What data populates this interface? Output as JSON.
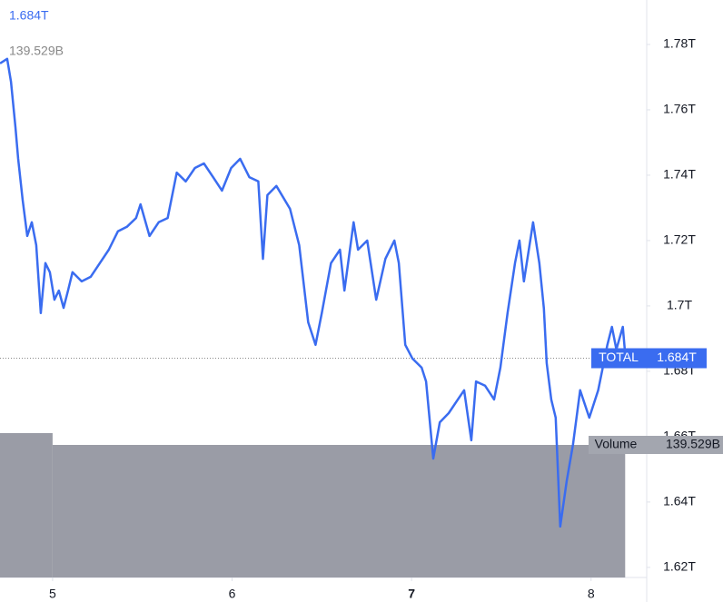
{
  "chart_data": {
    "type": "line",
    "series": [
      {
        "name": "TOTAL",
        "color": "#3a6cf0",
        "x": [
          4.707,
          4.747,
          4.768,
          4.793,
          4.808,
          4.833,
          4.859,
          4.884,
          4.909,
          4.934,
          4.96,
          4.985,
          5.01,
          5.035,
          5.061,
          5.086,
          5.111,
          5.162,
          5.212,
          5.263,
          5.313,
          5.364,
          5.414,
          5.465,
          5.49,
          5.54,
          5.591,
          5.641,
          5.692,
          5.742,
          5.793,
          5.843,
          5.894,
          5.944,
          5.995,
          6.045,
          6.096,
          6.146,
          6.172,
          6.197,
          6.247,
          6.323,
          6.374,
          6.424,
          6.465,
          6.5,
          6.551,
          6.601,
          6.626,
          6.677,
          6.702,
          6.753,
          6.803,
          6.854,
          6.904,
          6.929,
          6.965,
          7.005,
          7.056,
          7.081,
          7.121,
          7.157,
          7.207,
          7.258,
          7.293,
          7.333,
          7.359,
          7.409,
          7.46,
          7.495,
          7.535,
          7.576,
          7.601,
          7.626,
          7.677,
          7.712,
          7.737,
          7.753,
          7.778,
          7.803,
          7.828,
          7.864,
          7.899,
          7.939,
          7.99,
          8.04,
          8.091,
          8.116,
          8.141,
          8.177,
          8.192
        ],
        "values": [
          1.7742,
          1.7756,
          1.7686,
          1.7547,
          1.745,
          1.7325,
          1.7214,
          1.7256,
          1.7186,
          1.6978,
          1.7131,
          1.7103,
          1.7019,
          1.7047,
          1.6994,
          1.7047,
          1.7103,
          1.7075,
          1.7089,
          1.7131,
          1.7172,
          1.7228,
          1.7242,
          1.7269,
          1.7311,
          1.7214,
          1.7256,
          1.7269,
          1.7408,
          1.7381,
          1.7422,
          1.7436,
          1.7394,
          1.7353,
          1.7422,
          1.745,
          1.7394,
          1.7381,
          1.7144,
          1.7339,
          1.7367,
          1.7297,
          1.7186,
          1.695,
          1.6881,
          1.6978,
          1.7131,
          1.7172,
          1.7047,
          1.7256,
          1.7172,
          1.72,
          1.7019,
          1.7144,
          1.72,
          1.7131,
          1.6881,
          1.6839,
          1.6811,
          1.6769,
          1.6533,
          1.6644,
          1.6672,
          1.6714,
          1.6742,
          1.6589,
          1.6769,
          1.6756,
          1.6714,
          1.6811,
          1.6978,
          1.7131,
          1.72,
          1.7075,
          1.7256,
          1.7131,
          1.6992,
          1.6825,
          1.6714,
          1.6658,
          1.6325,
          1.6464,
          1.6575,
          1.6742,
          1.6658,
          1.6742,
          1.6881,
          1.6936,
          1.6867,
          1.6936,
          1.684
        ]
      }
    ],
    "last": {
      "value": 1.684,
      "label": "1.684T"
    },
    "volume": {
      "name": "Volume",
      "color": "#9a9ca6",
      "bins": [
        4.707,
        5.0,
        8.19
      ],
      "values": [
        152,
        139.529
      ],
      "value_labels": [
        null,
        "139.529B"
      ],
      "ylim": [
        0,
        607.8
      ]
    },
    "xlim": [
      4.707,
      8.31
    ],
    "xticks": [
      5,
      6,
      7,
      8
    ],
    "ylim": [
      1.6158,
      1.7936
    ],
    "yticks": [
      {
        "value": 1.62,
        "label": "1.62T"
      },
      {
        "value": 1.64,
        "label": "1.64T"
      },
      {
        "value": 1.66,
        "label": "1.66T"
      },
      {
        "value": 1.68,
        "label": "1.68T"
      },
      {
        "value": 1.7,
        "label": "1.7T"
      },
      {
        "value": 1.72,
        "label": "1.72T"
      },
      {
        "value": 1.74,
        "label": "1.74T"
      },
      {
        "value": 1.76,
        "label": "1.76T"
      },
      {
        "value": 1.78,
        "label": "1.78T"
      }
    ]
  }
}
